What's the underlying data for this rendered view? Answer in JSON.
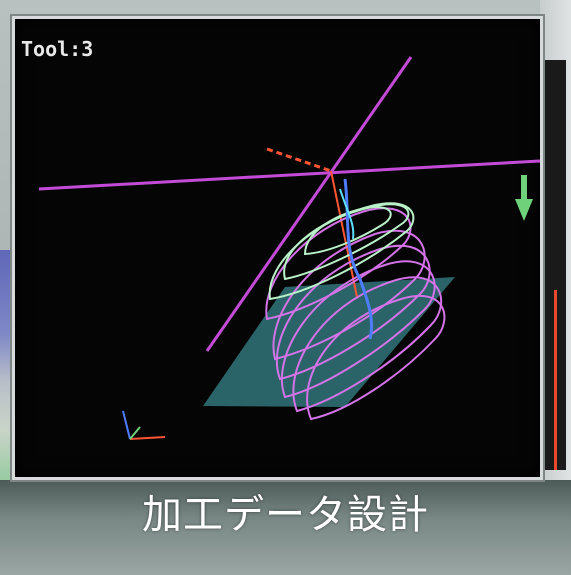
{
  "viewport": {
    "tool_label": "Tool:3",
    "colors": {
      "background": "#050505",
      "axis_line": "#c44bd8",
      "toolpath_primary": "#d473e8",
      "toolpath_secondary": "#b9f2c8",
      "surface": "#2f6f73",
      "tool_marker": "#ff5533",
      "accent_blue": "#4f7dff",
      "accent_cyan": "#5fe0ff",
      "indicator_green": "#6fd27a"
    }
  },
  "caption": {
    "text": "加工データ設計"
  }
}
